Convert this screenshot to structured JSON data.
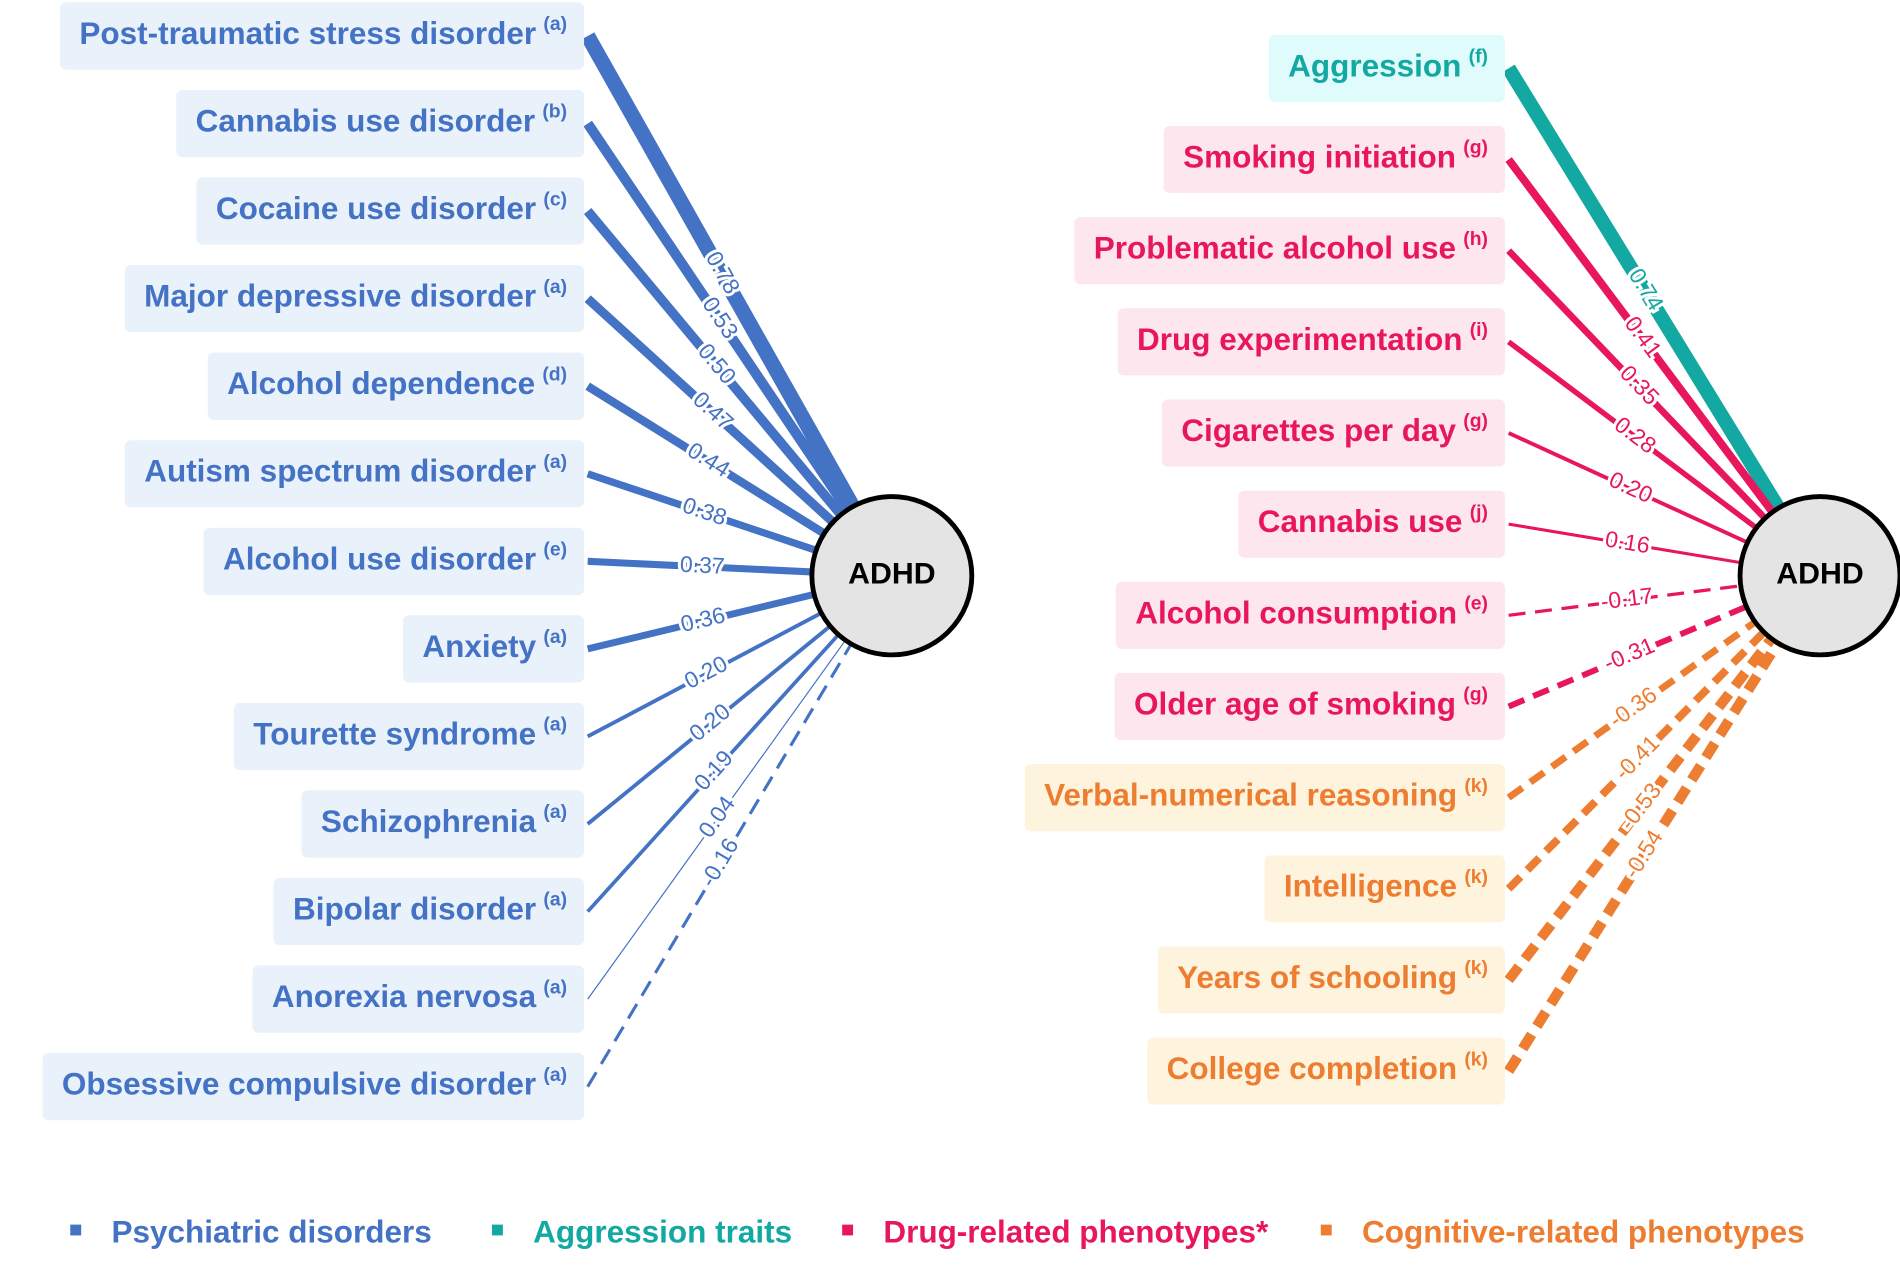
{
  "left": {
    "center": "ADHD",
    "color": "#4472c4",
    "background": "#e9f1fa",
    "links": [
      {
        "label": "Post-traumatic stress disorder",
        "ref": "(a)",
        "value": "0.78"
      },
      {
        "label": "Cannabis use disorder",
        "ref": "(b)",
        "value": "0.53"
      },
      {
        "label": "Cocaine use disorder",
        "ref": "(c)",
        "value": "0.50"
      },
      {
        "label": "Major depressive disorder",
        "ref": "(a)",
        "value": "0.47"
      },
      {
        "label": "Alcohol dependence",
        "ref": "(d)",
        "value": "0.44"
      },
      {
        "label": "Autism spectrum disorder",
        "ref": "(a)",
        "value": "0.38"
      },
      {
        "label": "Alcohol use disorder",
        "ref": "(e)",
        "value": "0.37"
      },
      {
        "label": "Anxiety",
        "ref": "(a)",
        "value": "0.36"
      },
      {
        "label": "Tourette syndrome",
        "ref": "(a)",
        "value": "0.20"
      },
      {
        "label": "Schizophrenia",
        "ref": "(a)",
        "value": "0.20"
      },
      {
        "label": "Bipolar disorder",
        "ref": "(a)",
        "value": "0.19"
      },
      {
        "label": "Anorexia nervosa",
        "ref": "(a)",
        "value": "0.04"
      },
      {
        "label": "Obsessive compulsive disorder",
        "ref": "(a)",
        "value": "-0.16"
      }
    ]
  },
  "right": {
    "center": "ADHD",
    "links": [
      {
        "label": "Aggression",
        "ref": "(f)",
        "value": "0.74",
        "group": 1
      },
      {
        "label": "Smoking initiation",
        "ref": "(g)",
        "value": "0.41",
        "group": 2
      },
      {
        "label": "Problematic alcohol use",
        "ref": "(h)",
        "value": "0.35",
        "group": 2
      },
      {
        "label": "Drug experimentation",
        "ref": "(i)",
        "value": "0.28",
        "group": 2
      },
      {
        "label": "Cigarettes per day",
        "ref": "(g)",
        "value": "0.20",
        "group": 2
      },
      {
        "label": "Cannabis use",
        "ref": "(j)",
        "value": "0.16",
        "group": 2
      },
      {
        "label": "Alcohol consumption",
        "ref": "(e)",
        "value": "-0.17",
        "group": 2
      },
      {
        "label": "Older age of smoking",
        "ref": "(g)",
        "value": "-0.31",
        "group": 2
      },
      {
        "label": "Verbal-numerical reasoning",
        "ref": "(k)",
        "value": "-0.36",
        "group": 3
      },
      {
        "label": "Intelligence",
        "ref": "(k)",
        "value": "-0.41",
        "group": 3
      },
      {
        "label": "Years of schooling",
        "ref": "(k)",
        "value": "-0.53",
        "group": 3
      },
      {
        "label": "College completion",
        "ref": "(k)",
        "value": "-0.54",
        "group": 3
      }
    ]
  },
  "legend": [
    {
      "label": "Psychiatric disorders",
      "color": "#4472c4",
      "background": "#e9f1fa"
    },
    {
      "label": "Aggression traits",
      "color": "#13a8a2",
      "background": "#e0fbfb"
    },
    {
      "label": "Drug-related phenotypes*",
      "color": "#e8175d",
      "background": "#fde6ee"
    },
    {
      "label": "Cognitive-related phenotypes",
      "color": "#ed7d31",
      "background": "#fef4de"
    }
  ]
}
